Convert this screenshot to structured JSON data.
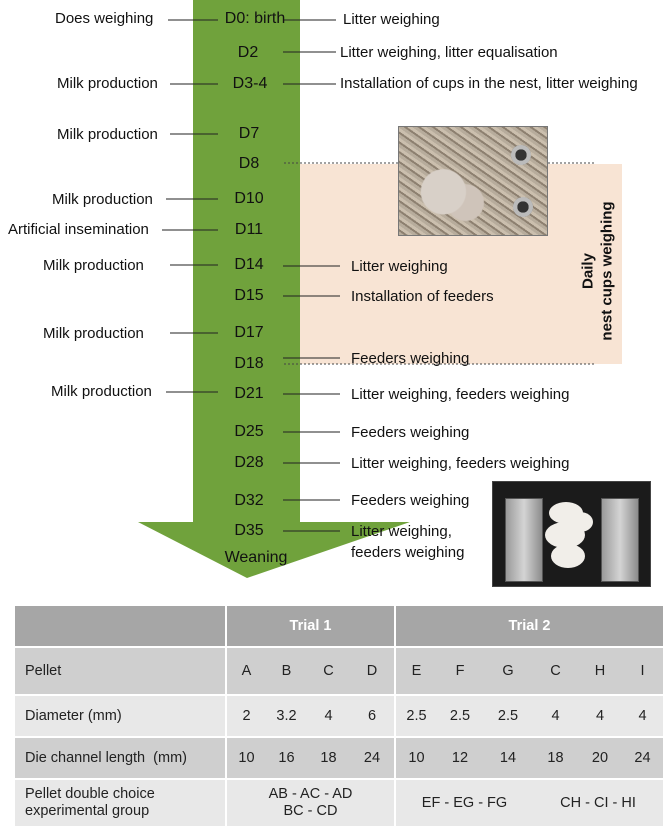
{
  "colors": {
    "arrow": "#70a23c",
    "shade": "#f8e4d4",
    "table_header": "#a6a6a6"
  },
  "timeline": {
    "days": [
      "D0: birth",
      "D2",
      "D3-4",
      "D7",
      "D8",
      "D10",
      "D11",
      "D14",
      "D15",
      "D17",
      "D18",
      "D21",
      "D25",
      "D28",
      "D32",
      "D35",
      "Weaning"
    ],
    "left_labels": [
      "Does weighing",
      "Milk production",
      "Milk production",
      "Milk production",
      "Artificial insemination",
      "Milk production",
      "Milk production",
      "Milk production"
    ],
    "right_labels": [
      "Litter weighing",
      "Litter weighing, litter equalisation",
      "Installation of cups in the nest, litter weighing",
      "Litter weighing",
      "Installation of feeders",
      "Feeders weighing",
      "Litter weighing, feeders weighing",
      "Feeders weighing",
      "Litter weighing, feeders weighing",
      "Feeders weighing",
      "Litter weighing,",
      "feeders weighing"
    ],
    "daily_box": [
      "Daily",
      "nest cups weighing"
    ]
  },
  "photos": {
    "nest_cups": "nest-cups-photo",
    "feeders": "feeders-photo"
  },
  "table": {
    "trial1": "Trial 1",
    "trial2": "Trial 2",
    "pellet_label": "Pellet",
    "pellets": [
      "A",
      "B",
      "C",
      "D",
      "E",
      "F",
      "G",
      "C",
      "H",
      "I"
    ],
    "diameter_label": "Diameter (mm)",
    "diameters": [
      "2",
      "3.2",
      "4",
      "6",
      "2.5",
      "2.5",
      "2.5",
      "4",
      "4",
      "4"
    ],
    "die_label": "Die channel length  (mm)",
    "die_lengths": [
      "10",
      "16",
      "18",
      "24",
      "10",
      "12",
      "14",
      "18",
      "20",
      "24"
    ],
    "group_label": [
      "Pellet double choice",
      "experimental group"
    ],
    "groups": [
      "AB - AC - AD",
      "BC - CD",
      "EF - EG - FG",
      "CH - CI - HI"
    ]
  }
}
